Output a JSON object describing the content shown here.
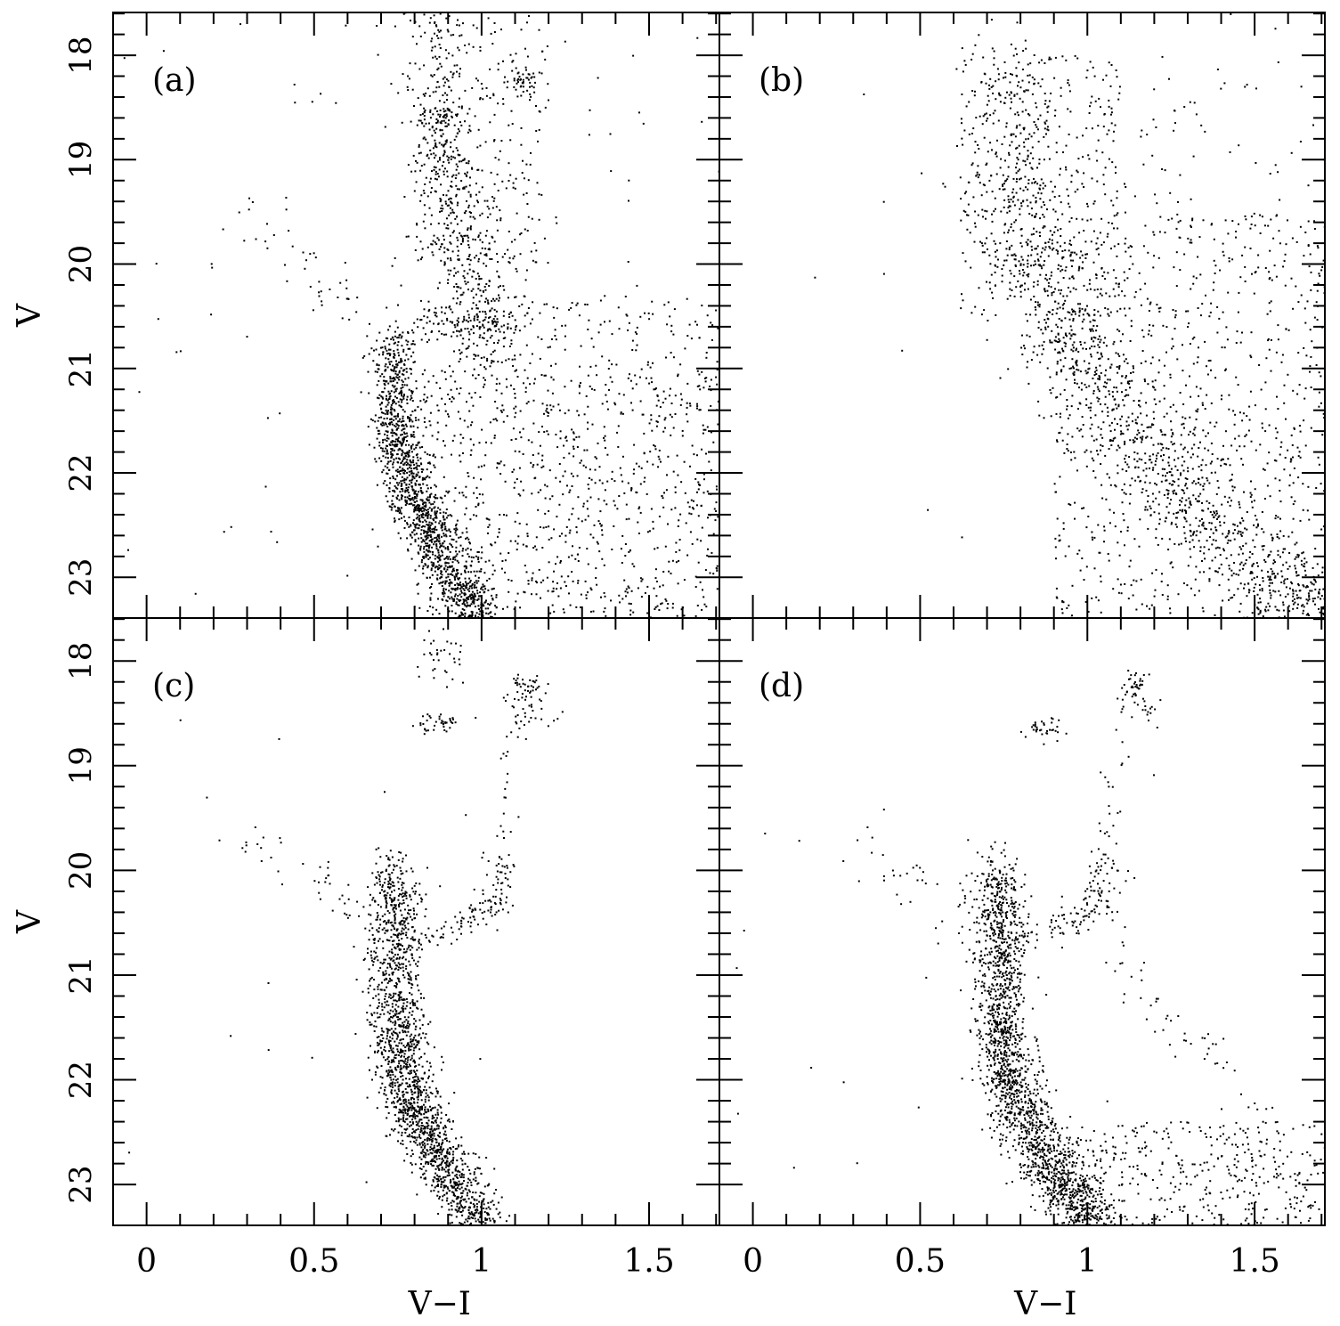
{
  "chart_data": {
    "type": "scatter",
    "xlabel": "V−I",
    "ylabel": "V",
    "xlim": [
      -0.1,
      1.71
    ],
    "ylim": [
      23.39,
      17.59
    ],
    "y_inverted": true,
    "x_ticks": [
      0,
      0.5,
      1,
      1.5
    ],
    "x_tick_labels": [
      "0",
      "0.5",
      "1",
      "1.5"
    ],
    "y_ticks": [
      18,
      19,
      20,
      21,
      22,
      23
    ],
    "y_tick_labels": [
      "18",
      "19",
      "20",
      "21",
      "22",
      "23"
    ],
    "grid": false,
    "point_color": "#000000",
    "panels": [
      {
        "label": "(a)",
        "seed": 11,
        "components": [
          {
            "kind": "track",
            "path": [
              [
                0.74,
                20.7
              ],
              [
                0.74,
                21.5
              ],
              [
                0.77,
                22.0
              ],
              [
                0.83,
                22.5
              ],
              [
                0.92,
                23.0
              ],
              [
                1.0,
                23.4
              ]
            ],
            "sd": [
              0.035,
              0.15
            ],
            "n": 1500
          },
          {
            "kind": "box",
            "x": [
              0.8,
              1.71
            ],
            "y": [
              21.0,
              23.4
            ],
            "n": 950
          },
          {
            "kind": "box",
            "x": [
              0.9,
              1.71
            ],
            "y": [
              20.3,
              21.0
            ],
            "n": 150
          },
          {
            "kind": "track",
            "path": [
              [
                0.87,
                17.6
              ],
              [
                0.9,
                19.0
              ],
              [
                0.95,
                20.0
              ],
              [
                1.05,
                20.8
              ]
            ],
            "sd": [
              0.06,
              0.2
            ],
            "n": 600
          },
          {
            "kind": "box",
            "x": [
              0.8,
              1.2
            ],
            "y": [
              17.6,
              20.0
            ],
            "n": 250
          },
          {
            "kind": "track",
            "path": [
              [
                0.8,
                20.6
              ],
              [
                1.05,
                20.55
              ]
            ],
            "sd": [
              0.02,
              0.08
            ],
            "n": 80
          },
          {
            "kind": "gauss",
            "c": [
              1.12,
              18.25
            ],
            "sd": [
              0.03,
              0.07
            ],
            "n": 40
          },
          {
            "kind": "gauss",
            "c": [
              0.87,
              18.6
            ],
            "sd": [
              0.03,
              0.06
            ],
            "n": 40
          },
          {
            "kind": "track",
            "path": [
              [
                0.28,
                19.6
              ],
              [
                0.5,
                20.1
              ],
              [
                0.65,
                20.4
              ]
            ],
            "sd": [
              0.04,
              0.15
            ],
            "n": 40
          },
          {
            "kind": "box",
            "x": [
              -0.1,
              1.71
            ],
            "y": [
              17.6,
              23.4
            ],
            "n": 110
          }
        ]
      },
      {
        "label": "(b)",
        "seed": 23,
        "components": [
          {
            "kind": "track",
            "path": [
              [
                0.78,
                18.0
              ],
              [
                0.8,
                19.5
              ],
              [
                0.9,
                20.5
              ],
              [
                1.05,
                21.3
              ],
              [
                1.3,
                22.2
              ],
              [
                1.55,
                23.0
              ],
              [
                1.71,
                23.3
              ]
            ],
            "sd": [
              0.08,
              0.2
            ],
            "n": 1400
          },
          {
            "kind": "box",
            "x": [
              0.9,
              1.71
            ],
            "y": [
              19.5,
              23.4
            ],
            "n": 950
          },
          {
            "kind": "box",
            "x": [
              0.62,
              1.1
            ],
            "y": [
              18.0,
              20.5
            ],
            "n": 300
          },
          {
            "kind": "box",
            "x": [
              1.0,
              1.71
            ],
            "y": [
              18.0,
              19.5
            ],
            "n": 60
          },
          {
            "kind": "box",
            "x": [
              -0.1,
              1.71
            ],
            "y": [
              17.6,
              23.4
            ],
            "n": 25
          }
        ]
      },
      {
        "label": "(c)",
        "seed": 37,
        "components": [
          {
            "kind": "track",
            "path": [
              [
                0.74,
                20.0
              ],
              [
                0.74,
                20.7
              ],
              [
                0.74,
                21.5
              ],
              [
                0.77,
                22.0
              ],
              [
                0.83,
                22.5
              ],
              [
                0.92,
                23.0
              ],
              [
                1.02,
                23.4
              ]
            ],
            "sd": [
              0.04,
              0.15
            ],
            "n": 1900
          },
          {
            "kind": "track",
            "path": [
              [
                0.78,
                20.7
              ],
              [
                0.95,
                20.5
              ],
              [
                1.05,
                20.3
              ],
              [
                1.05,
                19.9
              ]
            ],
            "sd": [
              0.025,
              0.08
            ],
            "n": 130
          },
          {
            "kind": "track",
            "path": [
              [
                1.05,
                19.9
              ],
              [
                1.08,
                19.1
              ],
              [
                1.12,
                18.3
              ]
            ],
            "sd": [
              0.02,
              0.05
            ],
            "n": 25
          },
          {
            "kind": "gauss",
            "c": [
              1.12,
              18.25
            ],
            "sd": [
              0.03,
              0.07
            ],
            "n": 45
          },
          {
            "kind": "gauss",
            "c": [
              0.87,
              18.6
            ],
            "sd": [
              0.03,
              0.06
            ],
            "n": 40
          },
          {
            "kind": "gauss",
            "c": [
              0.88,
              17.95
            ],
            "sd": [
              0.04,
              0.12
            ],
            "n": 35
          },
          {
            "kind": "gauss",
            "c": [
              1.15,
              18.5
            ],
            "sd": [
              0.05,
              0.1
            ],
            "n": 20
          },
          {
            "kind": "track",
            "path": [
              [
                0.28,
                19.6
              ],
              [
                0.5,
                20.1
              ],
              [
                0.65,
                20.4
              ]
            ],
            "sd": [
              0.04,
              0.15
            ],
            "n": 40
          },
          {
            "kind": "box",
            "x": [
              -0.1,
              1.0
            ],
            "y": [
              18.5,
              23.0
            ],
            "n": 20
          }
        ]
      },
      {
        "label": "(d)",
        "seed": 53,
        "components": [
          {
            "kind": "track",
            "path": [
              [
                0.74,
                20.0
              ],
              [
                0.74,
                20.7
              ],
              [
                0.74,
                21.5
              ],
              [
                0.77,
                22.0
              ],
              [
                0.83,
                22.5
              ],
              [
                0.92,
                23.0
              ],
              [
                1.02,
                23.4
              ]
            ],
            "sd": [
              0.04,
              0.15
            ],
            "n": 2000
          },
          {
            "kind": "box",
            "x": [
              0.9,
              1.71
            ],
            "y": [
              22.4,
              23.4
            ],
            "n": 420
          },
          {
            "kind": "track",
            "path": [
              [
                0.78,
                20.7
              ],
              [
                0.95,
                20.5
              ],
              [
                1.05,
                20.3
              ],
              [
                1.05,
                19.9
              ]
            ],
            "sd": [
              0.03,
              0.1
            ],
            "n": 140
          },
          {
            "kind": "track",
            "path": [
              [
                1.05,
                19.9
              ],
              [
                1.08,
                19.1
              ],
              [
                1.12,
                18.3
              ]
            ],
            "sd": [
              0.02,
              0.05
            ],
            "n": 25
          },
          {
            "kind": "gauss",
            "c": [
              1.14,
              18.25
            ],
            "sd": [
              0.02,
              0.07
            ],
            "n": 35
          },
          {
            "kind": "gauss",
            "c": [
              0.87,
              18.65
            ],
            "sd": [
              0.03,
              0.06
            ],
            "n": 35
          },
          {
            "kind": "gauss",
            "c": [
              1.17,
              18.45
            ],
            "sd": [
              0.03,
              0.1
            ],
            "n": 20
          },
          {
            "kind": "track",
            "path": [
              [
                1.1,
                20.8
              ],
              [
                1.25,
                21.6
              ],
              [
                1.4,
                21.8
              ],
              [
                1.55,
                22.6
              ]
            ],
            "sd": [
              0.03,
              0.08
            ],
            "n": 50
          },
          {
            "kind": "track",
            "path": [
              [
                0.28,
                19.6
              ],
              [
                0.5,
                20.1
              ],
              [
                0.65,
                20.4
              ]
            ],
            "sd": [
              0.04,
              0.15
            ],
            "n": 35
          },
          {
            "kind": "box",
            "x": [
              -0.1,
              1.71
            ],
            "y": [
              18.5,
              23.4
            ],
            "n": 25
          }
        ]
      }
    ]
  }
}
